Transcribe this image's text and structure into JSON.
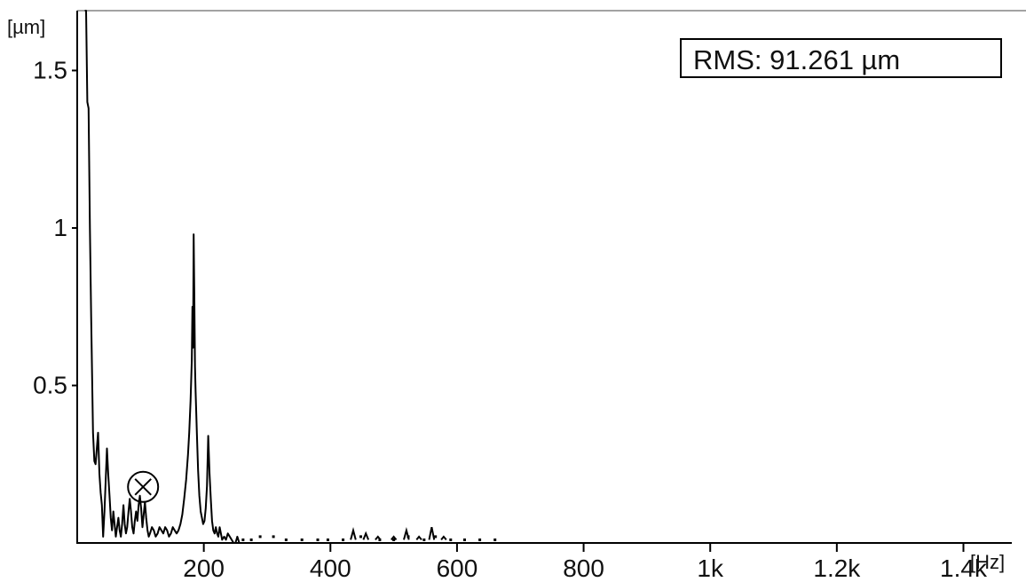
{
  "chart_data": {
    "type": "line",
    "title": "",
    "xlabel": "",
    "ylabel": "",
    "x_unit": "[Hz]",
    "y_unit": "[µm]",
    "xlim": [
      0,
      1590
    ],
    "ylim": [
      0,
      1.69
    ],
    "x_ticks": [
      {
        "value": 200,
        "label": "200"
      },
      {
        "value": 400,
        "label": "400"
      },
      {
        "value": 600,
        "label": "600"
      },
      {
        "value": 800,
        "label": "800"
      },
      {
        "value": 1000,
        "label": "1k"
      },
      {
        "value": 1200,
        "label": "1.2k"
      },
      {
        "value": 1400,
        "label": "1.4k"
      }
    ],
    "y_ticks": [
      {
        "value": 0.5,
        "label": "0.5"
      },
      {
        "value": 1,
        "label": "1"
      },
      {
        "value": 1.5,
        "label": "1.5"
      }
    ],
    "annotation": "RMS: 91.261 µm",
    "grid": false,
    "series": [
      {
        "color": "#000000",
        "points": [
          [
            12,
            1.69
          ],
          [
            14,
            1.69
          ],
          [
            16,
            1.4
          ],
          [
            18,
            1.38
          ],
          [
            20,
            1.0
          ],
          [
            22,
            0.72
          ],
          [
            25,
            0.35
          ],
          [
            27,
            0.26
          ],
          [
            29,
            0.25
          ],
          [
            31,
            0.3
          ],
          [
            33,
            0.35
          ],
          [
            35,
            0.22
          ],
          [
            37,
            0.16
          ],
          [
            39,
            0.12
          ],
          [
            41,
            0.02
          ],
          [
            43,
            0.1
          ],
          [
            45,
            0.2
          ],
          [
            47,
            0.3
          ],
          [
            49,
            0.22
          ],
          [
            51,
            0.15
          ],
          [
            53,
            0.08
          ],
          [
            55,
            0.04
          ],
          [
            57,
            0.1
          ],
          [
            59,
            0.06
          ],
          [
            61,
            0.02
          ],
          [
            63,
            0.05
          ],
          [
            65,
            0.08
          ],
          [
            67,
            0.04
          ],
          [
            69,
            0.02
          ],
          [
            71,
            0.06
          ],
          [
            73,
            0.12
          ],
          [
            75,
            0.06
          ],
          [
            77,
            0.03
          ],
          [
            79,
            0.05
          ],
          [
            81,
            0.1
          ],
          [
            83,
            0.14
          ],
          [
            85,
            0.1
          ],
          [
            87,
            0.05
          ],
          [
            89,
            0.03
          ],
          [
            91,
            0.07
          ],
          [
            93,
            0.1
          ],
          [
            95,
            0.07
          ],
          [
            97,
            0.12
          ],
          [
            99,
            0.15
          ],
          [
            101,
            0.11
          ],
          [
            103,
            0.05
          ],
          [
            105,
            0.09
          ],
          [
            107,
            0.13
          ],
          [
            109,
            0.08
          ],
          [
            111,
            0.04
          ],
          [
            113,
            0.02
          ],
          [
            115,
            0.03
          ],
          [
            118,
            0.05
          ],
          [
            121,
            0.04
          ],
          [
            124,
            0.02
          ],
          [
            127,
            0.03
          ],
          [
            130,
            0.05
          ],
          [
            133,
            0.04
          ],
          [
            136,
            0.03
          ],
          [
            139,
            0.05
          ],
          [
            142,
            0.04
          ],
          [
            145,
            0.02
          ],
          [
            148,
            0.03
          ],
          [
            151,
            0.05
          ],
          [
            154,
            0.04
          ],
          [
            157,
            0.03
          ],
          [
            160,
            0.04
          ],
          [
            163,
            0.06
          ],
          [
            166,
            0.09
          ],
          [
            169,
            0.14
          ],
          [
            172,
            0.2
          ],
          [
            175,
            0.28
          ],
          [
            177,
            0.35
          ],
          [
            179,
            0.45
          ],
          [
            181,
            0.58
          ],
          [
            182,
            0.75
          ],
          [
            183,
            0.62
          ],
          [
            184,
            0.98
          ],
          [
            185,
            0.8
          ],
          [
            186,
            0.56
          ],
          [
            187,
            0.48
          ],
          [
            189,
            0.35
          ],
          [
            191,
            0.23
          ],
          [
            193,
            0.15
          ],
          [
            195,
            0.1
          ],
          [
            197,
            0.08
          ],
          [
            199,
            0.06
          ],
          [
            201,
            0.07
          ],
          [
            203,
            0.11
          ],
          [
            205,
            0.18
          ],
          [
            207,
            0.34
          ],
          [
            209,
            0.22
          ],
          [
            211,
            0.14
          ],
          [
            213,
            0.07
          ],
          [
            215,
            0.04
          ],
          [
            217,
            0.03
          ],
          [
            219,
            0.05
          ],
          [
            221,
            0.03
          ],
          [
            223,
            0.02
          ],
          [
            225,
            0.05
          ],
          [
            227,
            0.03
          ],
          [
            229,
            0.01
          ],
          [
            232,
            0.02
          ],
          [
            235,
            0.01
          ],
          [
            238,
            0.03
          ],
          [
            241,
            0.02
          ],
          [
            244,
            0.01
          ],
          [
            247,
            0.0
          ],
          [
            250,
            0.0
          ],
          [
            253,
            0.02
          ],
          [
            256,
            0.0
          ]
        ]
      }
    ],
    "scatter_dots": [
      {
        "x": 262,
        "y": 0.01
      },
      {
        "x": 275,
        "y": 0.01
      },
      {
        "x": 289,
        "y": 0.02
      },
      {
        "x": 310,
        "y": 0.02
      },
      {
        "x": 330,
        "y": 0.01
      },
      {
        "x": 355,
        "y": 0.01
      },
      {
        "x": 380,
        "y": 0.01
      },
      {
        "x": 396,
        "y": 0.01
      },
      {
        "x": 420,
        "y": 0.01
      },
      {
        "x": 448,
        "y": 0.02
      },
      {
        "x": 478,
        "y": 0.01
      },
      {
        "x": 500,
        "y": 0.01
      },
      {
        "x": 523,
        "y": 0.02
      },
      {
        "x": 548,
        "y": 0.01
      },
      {
        "x": 566,
        "y": 0.02
      },
      {
        "x": 590,
        "y": 0.01
      },
      {
        "x": 612,
        "y": 0.01
      },
      {
        "x": 636,
        "y": 0.01
      },
      {
        "x": 660,
        "y": 0.01
      }
    ],
    "small_segments": [
      [
        [
          432,
          0.01
        ],
        [
          436,
          0.04
        ],
        [
          440,
          0.01
        ]
      ],
      [
        [
          452,
          0.01
        ],
        [
          456,
          0.03
        ],
        [
          460,
          0.01
        ]
      ],
      [
        [
          471,
          0.01
        ],
        [
          475,
          0.02
        ],
        [
          479,
          0.01
        ]
      ],
      [
        [
          496,
          0.01
        ],
        [
          500,
          0.02
        ],
        [
          504,
          0.01
        ]
      ],
      [
        [
          516,
          0.01
        ],
        [
          520,
          0.04
        ],
        [
          524,
          0.01
        ]
      ],
      [
        [
          536,
          0.01
        ],
        [
          540,
          0.02
        ],
        [
          544,
          0.01
        ]
      ],
      [
        [
          556,
          0.01
        ],
        [
          560,
          0.05
        ],
        [
          564,
          0.01
        ]
      ],
      [
        [
          575,
          0.01
        ],
        [
          579,
          0.02
        ],
        [
          583,
          0.01
        ]
      ]
    ],
    "marker": {
      "x": 104,
      "y": 0.178
    }
  }
}
